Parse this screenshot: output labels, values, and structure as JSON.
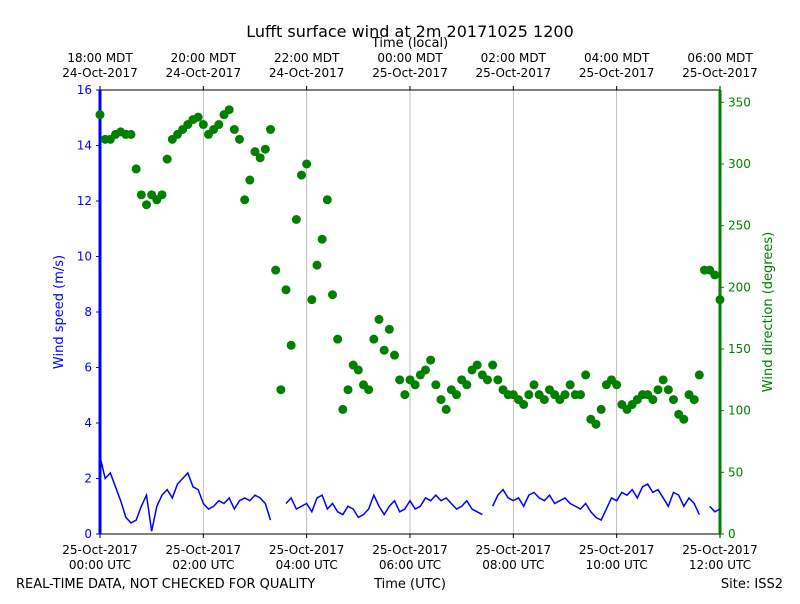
{
  "chart_data": {
    "type": "line-scatter",
    "title": "Lufft surface wind at 2m 20171025 1200",
    "x2label": "Time (local)",
    "xlabel": "Time (UTC)",
    "ylabel": "Wind speed (m/s)",
    "y2label": "Wind direction (degrees)",
    "footer_left": "REAL-TIME DATA, NOT CHECKED FOR QUALITY",
    "footer_right": "Site: ISS2",
    "xlim": [
      0,
      12
    ],
    "xticks": [
      {
        "value": 0,
        "label": "25-Oct-2017\n00:00 UTC"
      },
      {
        "value": 2,
        "label": "25-Oct-2017\n02:00 UTC"
      },
      {
        "value": 4,
        "label": "25-Oct-2017\n04:00 UTC"
      },
      {
        "value": 6,
        "label": "25-Oct-2017\n06:00 UTC"
      },
      {
        "value": 8,
        "label": "25-Oct-2017\n08:00 UTC"
      },
      {
        "value": 10,
        "label": "25-Oct-2017\n10:00 UTC"
      },
      {
        "value": 12,
        "label": "25-Oct-2017\n12:00 UTC"
      }
    ],
    "x2ticks": [
      {
        "value": 0,
        "label": "18:00 MDT\n24-Oct-2017"
      },
      {
        "value": 2,
        "label": "20:00 MDT\n24-Oct-2017"
      },
      {
        "value": 4,
        "label": "22:00 MDT\n24-Oct-2017"
      },
      {
        "value": 6,
        "label": "00:00 MDT\n25-Oct-2017"
      },
      {
        "value": 8,
        "label": "02:00 MDT\n25-Oct-2017"
      },
      {
        "value": 10,
        "label": "04:00 MDT\n25-Oct-2017"
      },
      {
        "value": 12,
        "label": "06:00 MDT\n25-Oct-2017"
      }
    ],
    "ylim": [
      0,
      16
    ],
    "yticks": [
      0,
      2,
      4,
      6,
      8,
      10,
      12,
      14,
      16
    ],
    "y2lim": [
      0,
      360
    ],
    "y2ticks": [
      0,
      50,
      100,
      150,
      200,
      250,
      300,
      350
    ],
    "grid": "x",
    "x": [
      0,
      0.1,
      0.2,
      0.3,
      0.4,
      0.5,
      0.6,
      0.7,
      0.8,
      0.9,
      1,
      1.1,
      1.2,
      1.3,
      1.4,
      1.5,
      1.6,
      1.7,
      1.8,
      1.9,
      2,
      2.1,
      2.2,
      2.3,
      2.4,
      2.5,
      2.6,
      2.7,
      2.8,
      2.9,
      3,
      3.1,
      3.2,
      3.3,
      3.4,
      3.5,
      3.6,
      3.7,
      3.8,
      3.9,
      4,
      4.1,
      4.2,
      4.3,
      4.4,
      4.5,
      4.6,
      4.7,
      4.8,
      4.9,
      5,
      5.1,
      5.2,
      5.3,
      5.4,
      5.5,
      5.6,
      5.7,
      5.8,
      5.9,
      6,
      6.1,
      6.2,
      6.3,
      6.4,
      6.5,
      6.6,
      6.7,
      6.8,
      6.9,
      7,
      7.1,
      7.2,
      7.3,
      7.4,
      7.5,
      7.6,
      7.7,
      7.8,
      7.9,
      8,
      8.1,
      8.2,
      8.3,
      8.4,
      8.5,
      8.6,
      8.7,
      8.8,
      8.9,
      9,
      9.1,
      9.2,
      9.3,
      9.4,
      9.5,
      9.6,
      9.7,
      9.8,
      9.9,
      10,
      10.1,
      10.2,
      10.3,
      10.4,
      10.5,
      10.6,
      10.7,
      10.8,
      10.9,
      11,
      11.1,
      11.2,
      11.3,
      11.4,
      11.5,
      11.6,
      11.7,
      11.8,
      11.9,
      12
    ],
    "series": [
      {
        "kind": "line",
        "color": "#0000ff",
        "axis": "y",
        "values": [
          2.8,
          2.0,
          2.2,
          1.7,
          1.2,
          0.6,
          0.4,
          0.5,
          1.0,
          1.4,
          0.1,
          1.0,
          1.4,
          1.6,
          1.3,
          1.8,
          2.0,
          2.2,
          1.7,
          1.6,
          1.1,
          0.9,
          1.0,
          1.2,
          1.1,
          1.3,
          0.9,
          1.2,
          1.3,
          1.2,
          1.4,
          1.3,
          1.1,
          0.5,
          null,
          null,
          1.1,
          1.3,
          0.9,
          1.0,
          1.1,
          0.8,
          1.3,
          1.4,
          0.9,
          1.1,
          0.8,
          0.7,
          1.0,
          0.9,
          0.6,
          0.7,
          0.9,
          1.4,
          1.0,
          0.7,
          1.0,
          1.2,
          0.8,
          0.9,
          1.2,
          0.9,
          1.0,
          1.3,
          1.2,
          1.4,
          1.2,
          1.3,
          1.1,
          0.9,
          1.0,
          1.2,
          0.9,
          0.8,
          0.7,
          null,
          1.0,
          1.4,
          1.6,
          1.3,
          1.2,
          1.3,
          1.0,
          1.4,
          1.5,
          1.3,
          1.2,
          1.4,
          1.1,
          1.2,
          1.3,
          1.1,
          1.0,
          0.9,
          1.1,
          0.8,
          0.6,
          0.5,
          0.9,
          1.3,
          1.2,
          1.5,
          1.4,
          1.6,
          1.3,
          1.7,
          1.8,
          1.5,
          1.6,
          1.3,
          1.0,
          1.5,
          1.4,
          1.0,
          1.3,
          1.1,
          0.7,
          null,
          1.0,
          0.8,
          0.9
        ]
      },
      {
        "kind": "scatter",
        "color": "#008000",
        "axis": "y2",
        "values": [
          340,
          320,
          320,
          324,
          326,
          324,
          324,
          296,
          275,
          267,
          275,
          271,
          275,
          304,
          320,
          324,
          328,
          332,
          336,
          338,
          332,
          324,
          328,
          332,
          340,
          344,
          328,
          320,
          271,
          287,
          310,
          305,
          312,
          328,
          214,
          117,
          198,
          153,
          255,
          291,
          300,
          190,
          218,
          239,
          271,
          194,
          158,
          101,
          117,
          137,
          133,
          121,
          117,
          158,
          174,
          149,
          166,
          145,
          125,
          113,
          125,
          121,
          129,
          133,
          141,
          121,
          109,
          101,
          117,
          113,
          125,
          121,
          133,
          137,
          129,
          125,
          137,
          125,
          117,
          113,
          113,
          109,
          105,
          113,
          121,
          113,
          109,
          117,
          113,
          109,
          113,
          121,
          113,
          113,
          129,
          93,
          89,
          101,
          121,
          125,
          121,
          105,
          101,
          105,
          109,
          113,
          113,
          109,
          117,
          125,
          117,
          109,
          97,
          93,
          113,
          109,
          129,
          214,
          214,
          210,
          190
        ]
      }
    ]
  }
}
